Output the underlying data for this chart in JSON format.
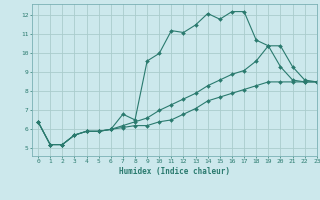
{
  "xlabel": "Humidex (Indice chaleur)",
  "background_color": "#cce8ec",
  "grid_color": "#aacccc",
  "line_color": "#2a7a6e",
  "xlim": [
    -0.5,
    23
  ],
  "ylim": [
    4.6,
    12.6
  ],
  "xticks": [
    0,
    1,
    2,
    3,
    4,
    5,
    6,
    7,
    8,
    9,
    10,
    11,
    12,
    13,
    14,
    15,
    16,
    17,
    18,
    19,
    20,
    21,
    22,
    23
  ],
  "yticks": [
    5,
    6,
    7,
    8,
    9,
    10,
    11,
    12
  ],
  "line1_x": [
    0,
    1,
    2,
    3,
    4,
    5,
    6,
    7,
    8,
    9,
    10,
    11,
    12,
    13,
    14,
    15,
    16,
    17,
    18,
    19,
    20,
    21,
    22,
    23
  ],
  "line1_y": [
    6.4,
    5.2,
    5.2,
    5.7,
    5.9,
    5.9,
    6.0,
    6.8,
    6.5,
    9.6,
    10.0,
    11.2,
    11.1,
    11.5,
    12.1,
    11.8,
    12.2,
    12.2,
    10.7,
    10.4,
    9.3,
    8.6,
    8.5,
    8.5
  ],
  "line2_x": [
    0,
    1,
    2,
    3,
    4,
    5,
    6,
    7,
    8,
    9,
    10,
    11,
    12,
    13,
    14,
    15,
    16,
    17,
    18,
    19,
    20,
    21,
    22,
    23
  ],
  "line2_y": [
    6.4,
    5.2,
    5.2,
    5.7,
    5.9,
    5.9,
    6.0,
    6.1,
    6.2,
    6.2,
    6.4,
    6.5,
    6.8,
    7.1,
    7.5,
    7.7,
    7.9,
    8.1,
    8.3,
    8.5,
    8.5,
    8.5,
    8.5,
    8.5
  ],
  "line3_x": [
    0,
    1,
    2,
    3,
    4,
    5,
    6,
    7,
    8,
    9,
    10,
    11,
    12,
    13,
    14,
    15,
    16,
    17,
    18,
    19,
    20,
    21,
    22,
    23
  ],
  "line3_y": [
    6.4,
    5.2,
    5.2,
    5.7,
    5.9,
    5.9,
    6.0,
    6.2,
    6.4,
    6.6,
    7.0,
    7.3,
    7.6,
    7.9,
    8.3,
    8.6,
    8.9,
    9.1,
    9.6,
    10.4,
    10.4,
    9.3,
    8.6,
    8.5
  ]
}
